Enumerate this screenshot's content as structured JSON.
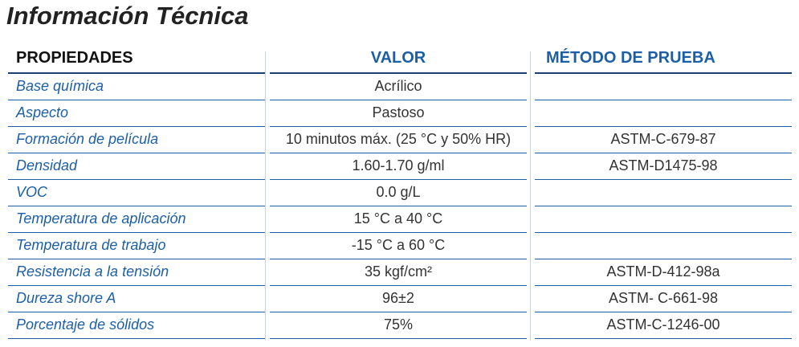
{
  "header": {
    "title": "Información Técnica"
  },
  "table": {
    "columns": [
      "PROPIEDADES",
      "VALOR",
      "MÉTODO DE PRUEBA"
    ],
    "rows": [
      {
        "property": "Base química",
        "value": "Acrílico"
      },
      {
        "property": "Aspecto",
        "value": "Pastoso"
      },
      {
        "property": "Formación de película",
        "value": "10 minutos máx. (25 °C y 50% HR)",
        "method": "ASTM-C-679-87"
      },
      {
        "property": "Densidad",
        "value": "1.60-1.70 g/ml",
        "method": "ASTM-D1475-98"
      },
      {
        "property": "VOC",
        "value": "0.0 g/L"
      },
      {
        "property": "Temperatura de aplicación",
        "value": "15 °C a 40 °C"
      },
      {
        "property": "Temperatura de trabajo",
        "value": "-15 °C a 60 °C"
      },
      {
        "property": "Resistencia a la tensión",
        "value": "35 kgf/cm²",
        "method": "ASTM-D-412-98a"
      },
      {
        "property": "Dureza shore A",
        "value": "96±2",
        "method": "ASTM- C-661-98"
      },
      {
        "property": "Porcentaje de sólidos",
        "value": "75%",
        "method": "ASTM-C-1246-00"
      }
    ]
  }
}
